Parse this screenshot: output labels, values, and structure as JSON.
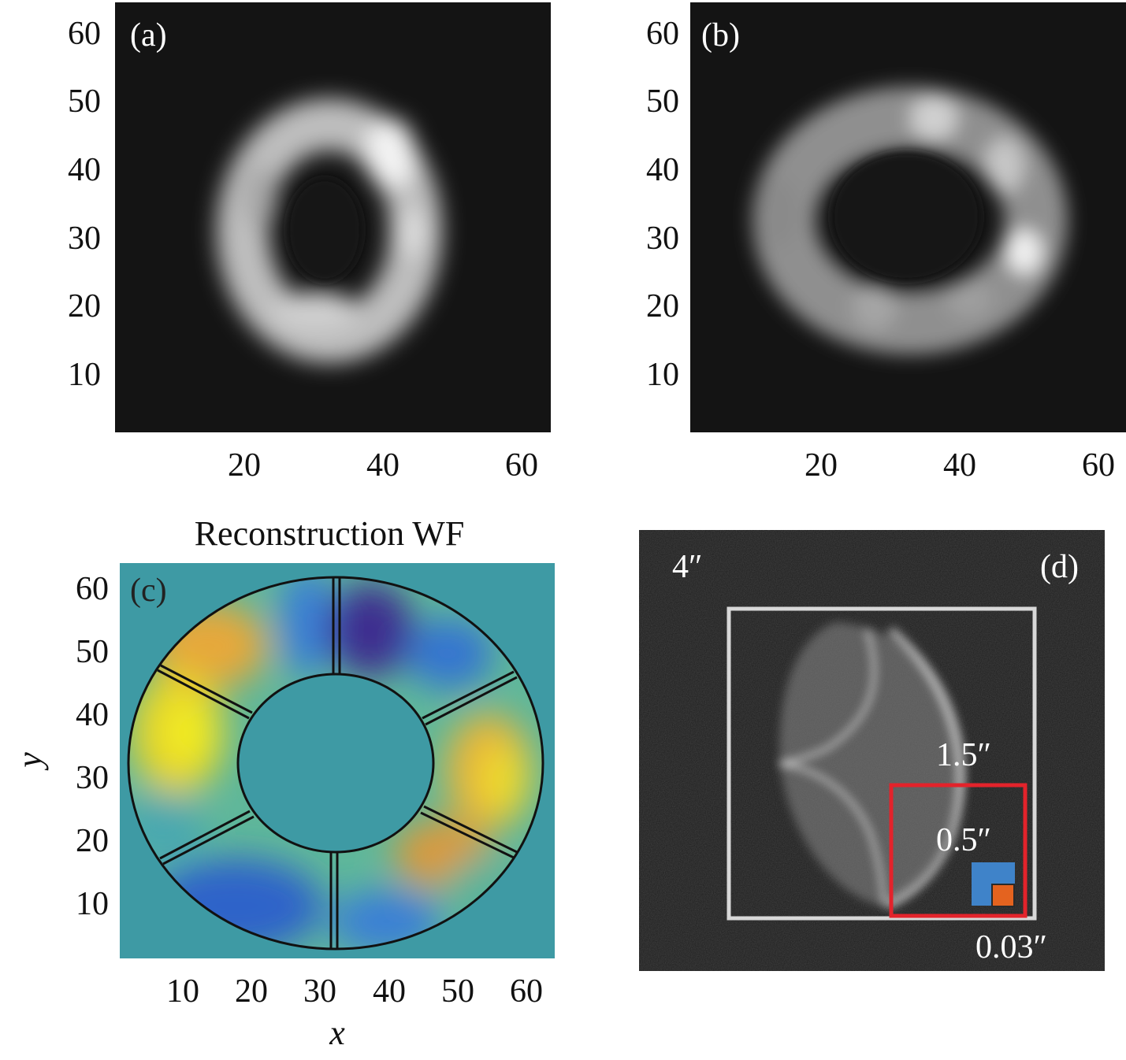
{
  "panels": {
    "a": {
      "label": "(a)",
      "x_ticks": [
        "20",
        "40",
        "60"
      ],
      "y_ticks": [
        "60",
        "50",
        "40",
        "30",
        "20",
        "10"
      ]
    },
    "b": {
      "label": "(b)",
      "x_ticks": [
        "20",
        "40",
        "60"
      ],
      "y_ticks": [
        "60",
        "50",
        "40",
        "30",
        "20",
        "10"
      ]
    },
    "c": {
      "label": "(c)",
      "title": "Reconstruction WF",
      "xlabel": "x",
      "ylabel": "y",
      "x_ticks": [
        "10",
        "20",
        "30",
        "40",
        "50",
        "60"
      ],
      "y_ticks": [
        "60",
        "50",
        "40",
        "30",
        "20",
        "10"
      ]
    },
    "d": {
      "label": "(d)",
      "outer_label": "4″",
      "box1_label": "1.5″",
      "box2_label": "0.5″",
      "pixel_label": "0.03″"
    }
  },
  "colors": {
    "background_dark": "#141414",
    "ring_glow": "#e6e6e6",
    "wf_background": "#3e9aa4",
    "red_box": "#e3232b",
    "blue_square": "#3f83c9",
    "orange_square": "#e4631f"
  },
  "chart_data": [
    {
      "type": "heatmap",
      "panel": "(a)",
      "content": "grayscale intensity image of annular (donut) PSF",
      "xlim": [
        1,
        64
      ],
      "ylim": [
        1,
        64
      ],
      "x_ticks": [
        20,
        40,
        60
      ],
      "y_ticks": [
        10,
        20,
        30,
        40,
        50,
        60
      ]
    },
    {
      "type": "heatmap",
      "panel": "(b)",
      "content": "grayscale intensity image of broader, mottled annular PSF",
      "xlim": [
        1,
        64
      ],
      "ylim": [
        1,
        64
      ],
      "x_ticks": [
        20,
        40,
        60
      ],
      "y_ticks": [
        10,
        20,
        30,
        40,
        50,
        60
      ]
    },
    {
      "type": "heatmap",
      "panel": "(c)",
      "title": "Reconstruction WF",
      "xlabel": "x",
      "ylabel": "y",
      "colormap": "parula",
      "segments": 6,
      "xlim": [
        1,
        64
      ],
      "ylim": [
        1,
        64
      ],
      "x_ticks": [
        10,
        20,
        30,
        40,
        50,
        60
      ],
      "y_ticks": [
        10,
        20,
        30,
        40,
        50,
        60
      ]
    }
  ]
}
